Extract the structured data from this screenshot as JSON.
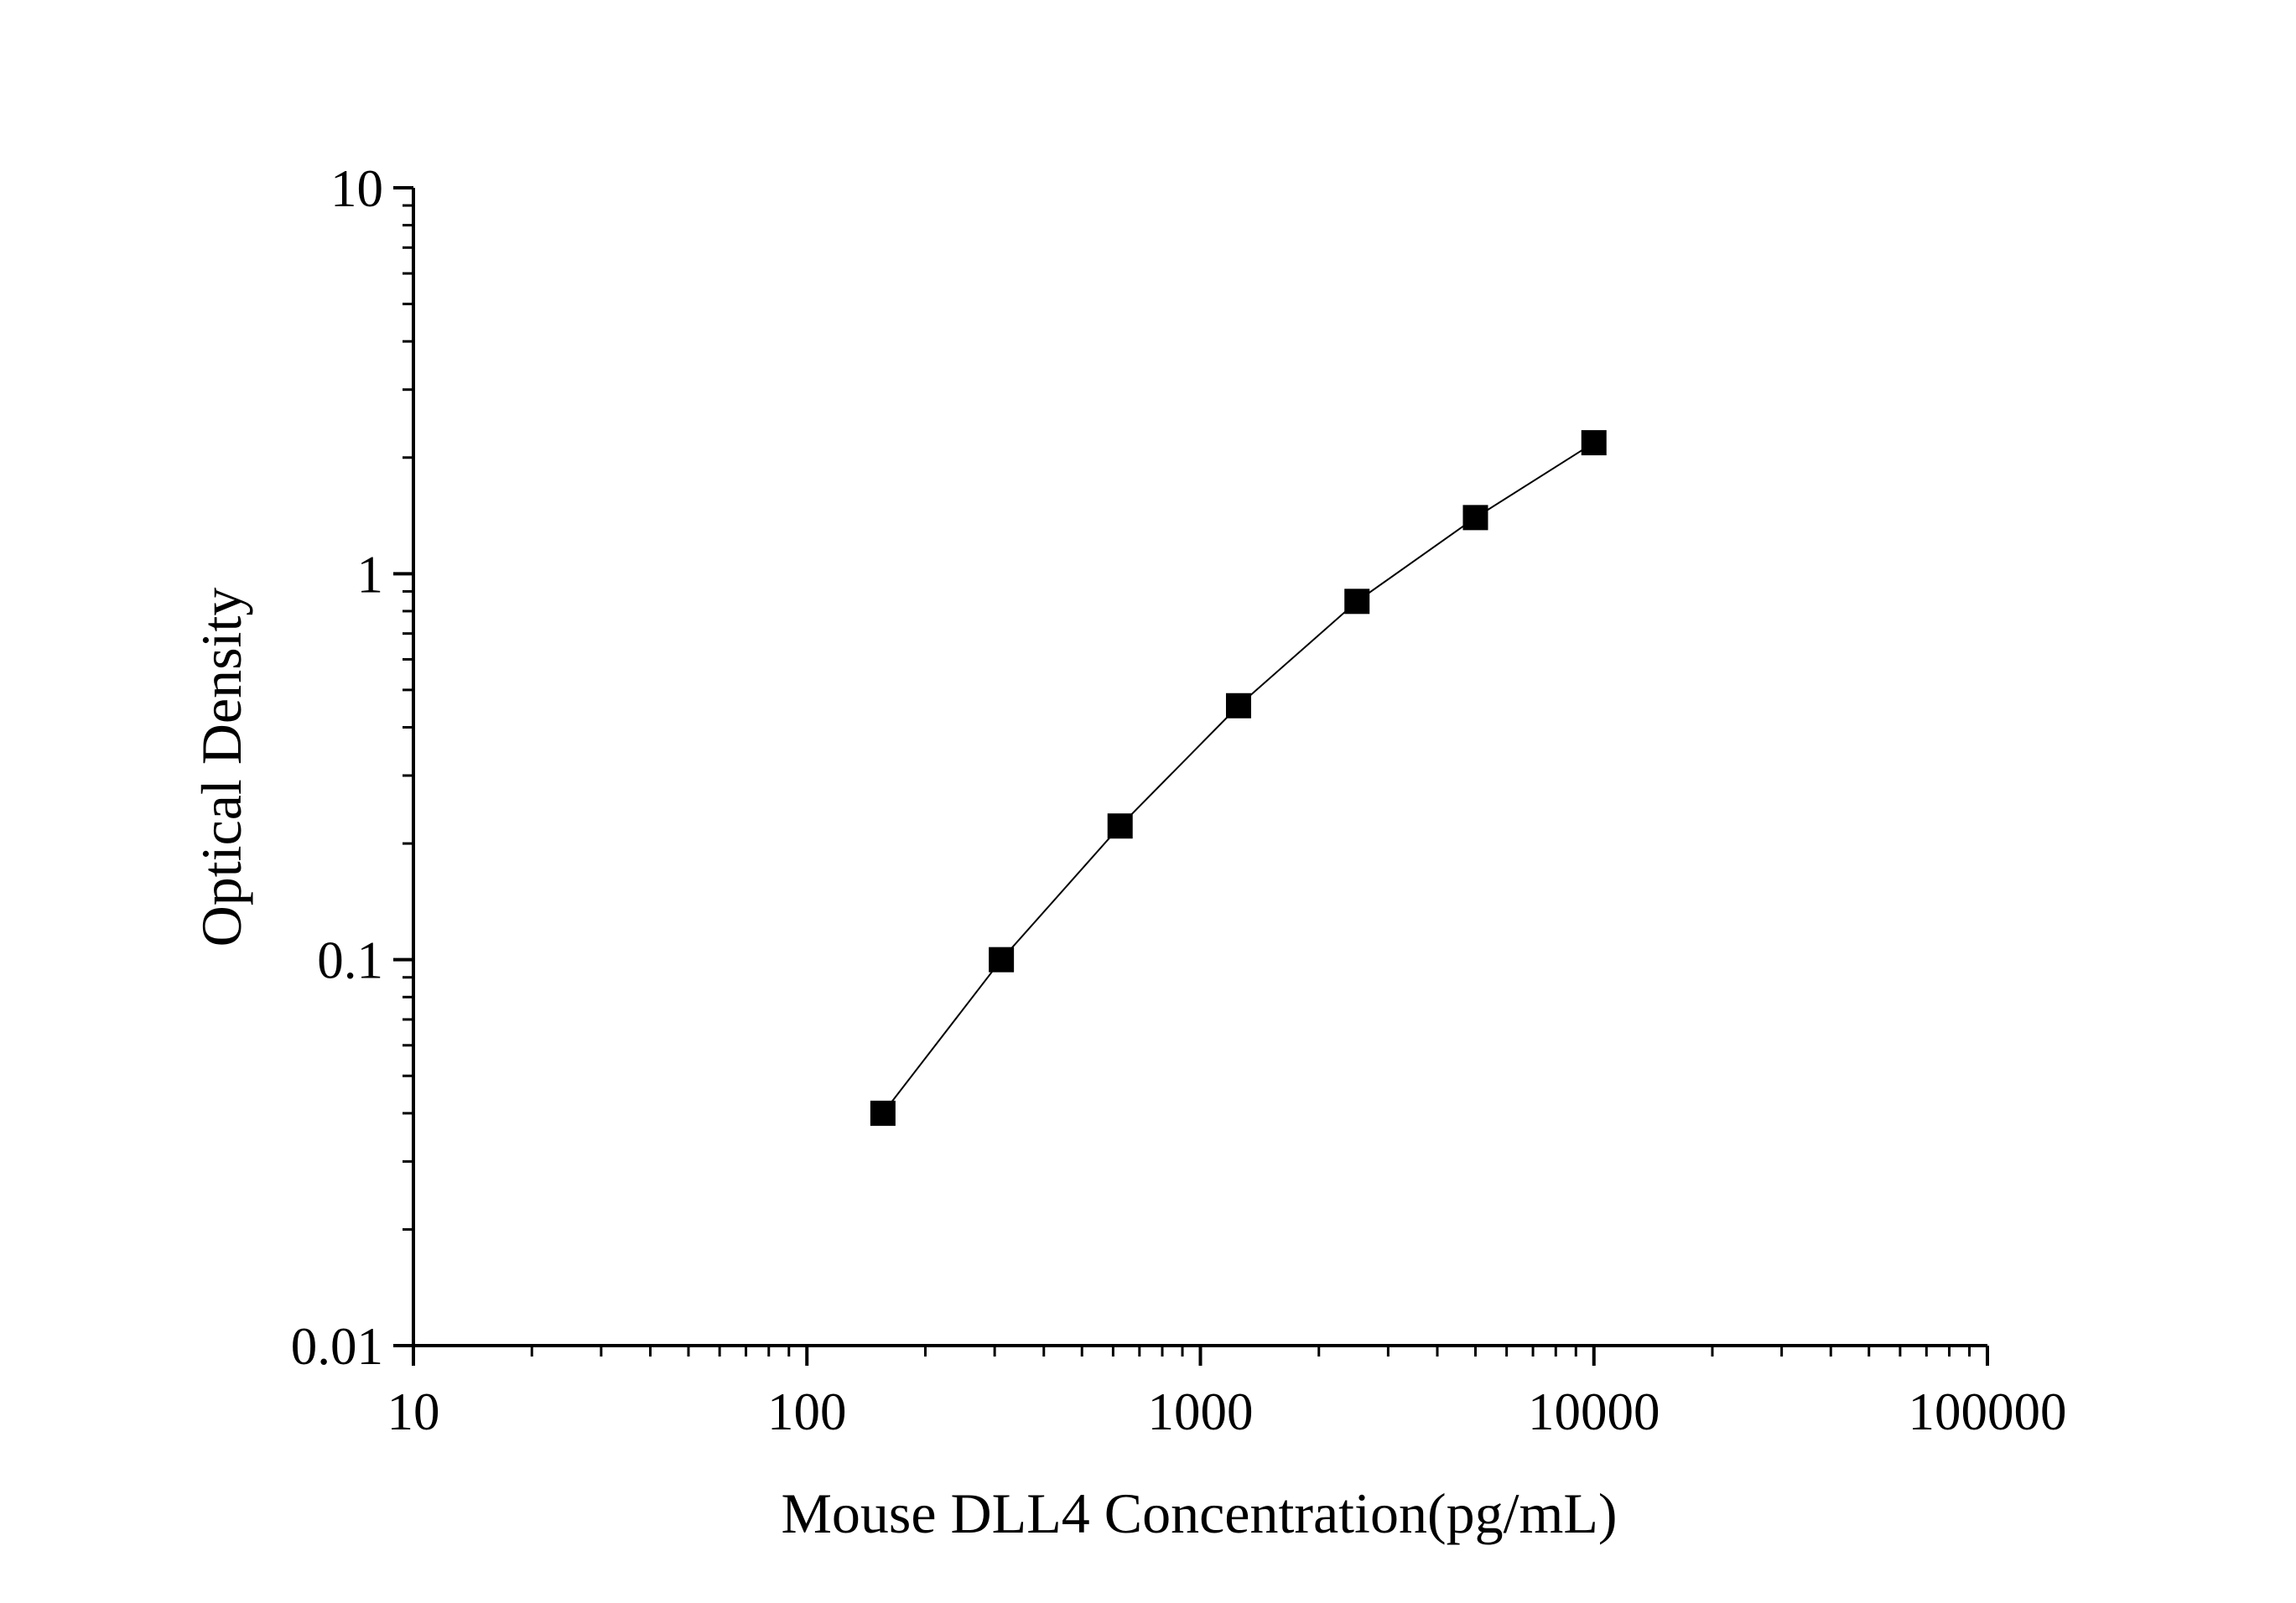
{
  "chart_data": {
    "type": "scatter",
    "xlabel": "Mouse DLL4 Concentration(pg/mL)",
    "ylabel": "Optical Density",
    "x_scale": "log",
    "y_scale": "log",
    "xlim": [
      10,
      100000
    ],
    "ylim": [
      0.01,
      10
    ],
    "x_ticks": [
      "10",
      "100",
      "1000",
      "10000",
      "100000"
    ],
    "y_ticks": [
      "0.01",
      "0.1",
      "1",
      "10"
    ],
    "grid": false,
    "legend": "none",
    "series": [
      {
        "marker": "square",
        "color": "#000000",
        "points": [
          {
            "x": 156,
            "y": 0.04
          },
          {
            "x": 312,
            "y": 0.1
          },
          {
            "x": 625,
            "y": 0.222
          },
          {
            "x": 1250,
            "y": 0.455
          },
          {
            "x": 2500,
            "y": 0.848
          },
          {
            "x": 5000,
            "y": 1.398
          },
          {
            "x": 10000,
            "y": 2.185
          }
        ]
      }
    ]
  }
}
